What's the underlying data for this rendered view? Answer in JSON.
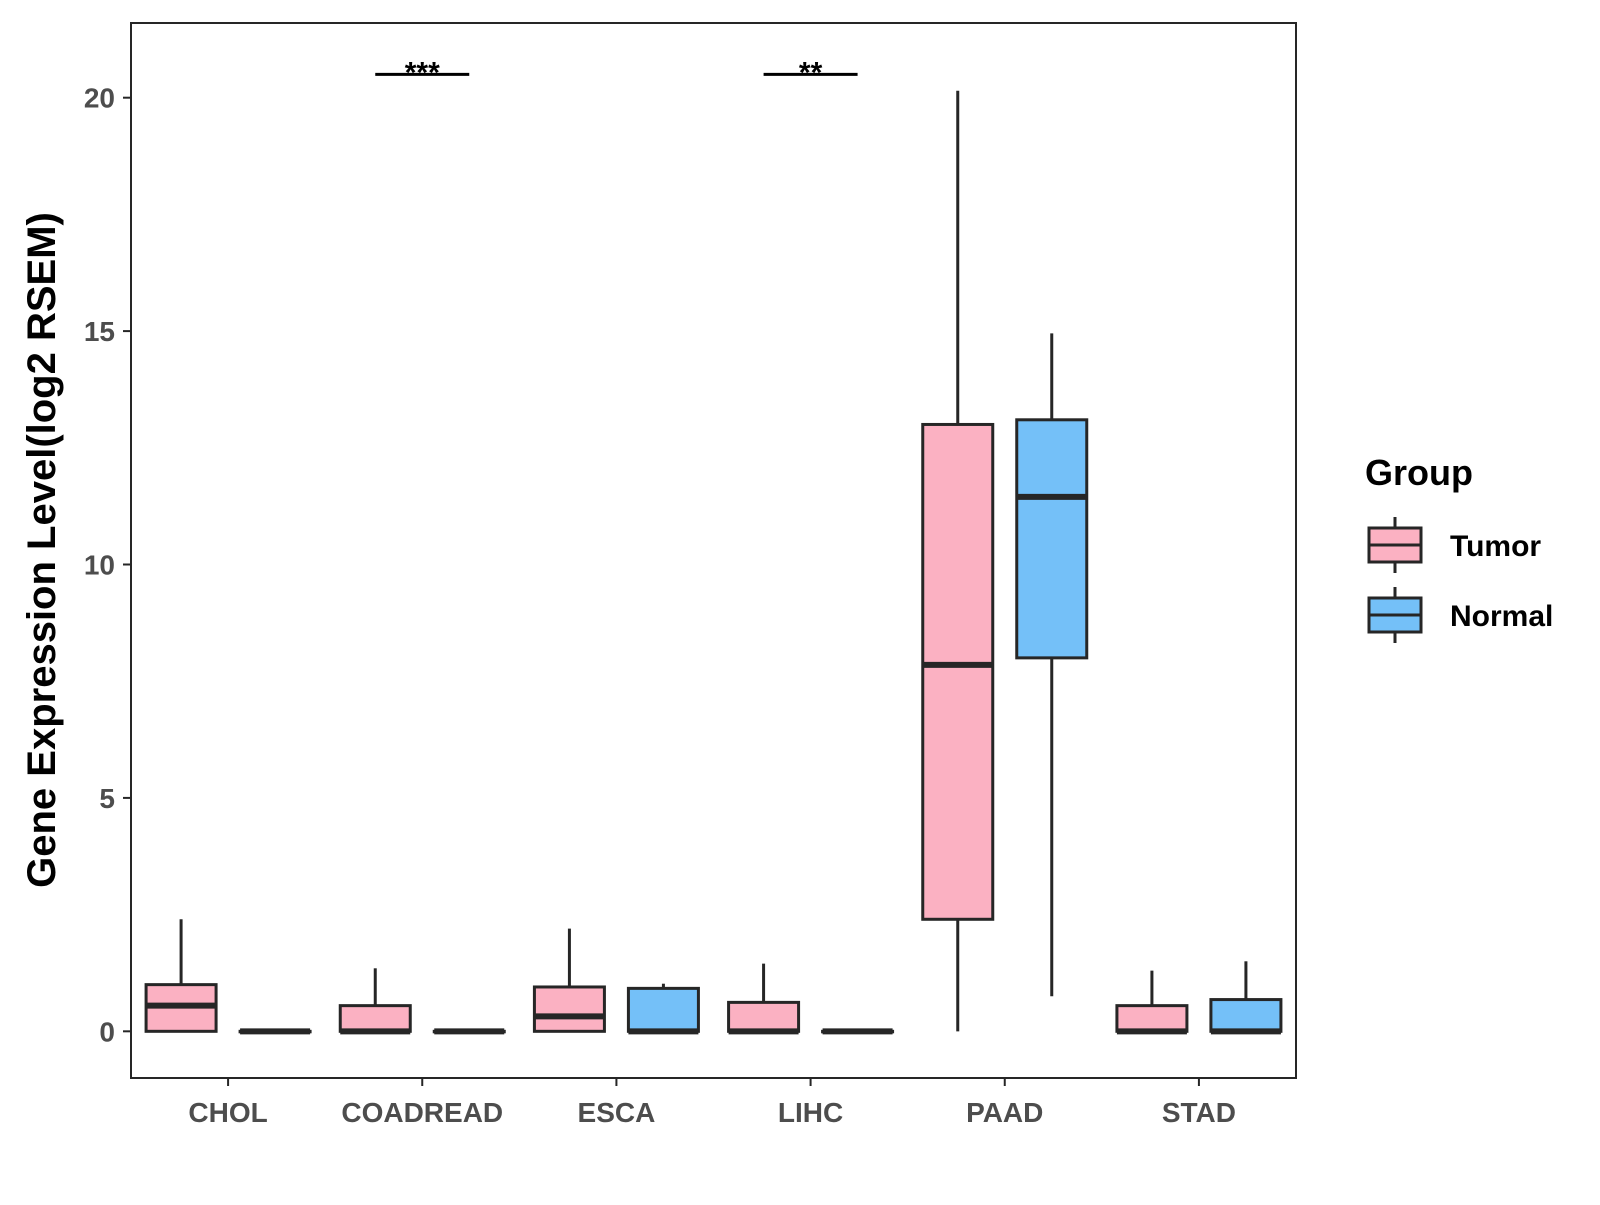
{
  "chart_data": {
    "type": "boxplot",
    "ylabel": "Gene Expression Level(log2 RSEM)",
    "xlabel": "",
    "categories": [
      "CHOL",
      "COADREAD",
      "ESCA",
      "LIHC",
      "PAAD",
      "STAD"
    ],
    "ylim": [
      -1,
      21.6
    ],
    "yticks": [
      0,
      5,
      10,
      15,
      20
    ],
    "grid": false,
    "legend": {
      "title": "Group",
      "position": "right",
      "entries": [
        "Tumor",
        "Normal"
      ]
    },
    "colors": {
      "Tumor": "#FBB1C2",
      "Normal": "#74C0F8",
      "outline": "#262626"
    },
    "series": [
      {
        "name": "Tumor",
        "boxes": [
          {
            "category": "CHOL",
            "min": 0,
            "q1": 0,
            "median": 0.55,
            "q3": 1.0,
            "max": 2.4
          },
          {
            "category": "COADREAD",
            "min": 0,
            "q1": 0,
            "median": 0,
            "q3": 0.55,
            "max": 1.35
          },
          {
            "category": "ESCA",
            "min": 0,
            "q1": 0,
            "median": 0.32,
            "q3": 0.95,
            "max": 2.2
          },
          {
            "category": "LIHC",
            "min": 0,
            "q1": 0,
            "median": 0,
            "q3": 0.62,
            "max": 1.45
          },
          {
            "category": "PAAD",
            "min": 0,
            "q1": 2.4,
            "median": 7.85,
            "q3": 13.0,
            "max": 20.15
          },
          {
            "category": "STAD",
            "min": 0,
            "q1": 0,
            "median": 0,
            "q3": 0.55,
            "max": 1.3
          }
        ]
      },
      {
        "name": "Normal",
        "boxes": [
          {
            "category": "CHOL",
            "min": 0,
            "q1": 0,
            "median": 0,
            "q3": 0,
            "max": 0
          },
          {
            "category": "COADREAD",
            "min": 0,
            "q1": 0,
            "median": 0,
            "q3": 0,
            "max": 0
          },
          {
            "category": "ESCA",
            "min": 0,
            "q1": 0,
            "median": 0,
            "q3": 0.92,
            "max": 1.02
          },
          {
            "category": "LIHC",
            "min": 0,
            "q1": 0,
            "median": 0,
            "q3": 0,
            "max": 0
          },
          {
            "category": "PAAD",
            "min": 0.75,
            "q1": 8.0,
            "median": 11.45,
            "q3": 13.1,
            "max": 14.95
          },
          {
            "category": "STAD",
            "min": 0,
            "q1": 0,
            "median": 0,
            "q3": 0.68,
            "max": 1.5
          }
        ]
      }
    ],
    "annotations": [
      {
        "category": "COADREAD",
        "label": "***",
        "y": 20.5
      },
      {
        "category": "LIHC",
        "label": "**",
        "y": 20.5
      }
    ]
  }
}
